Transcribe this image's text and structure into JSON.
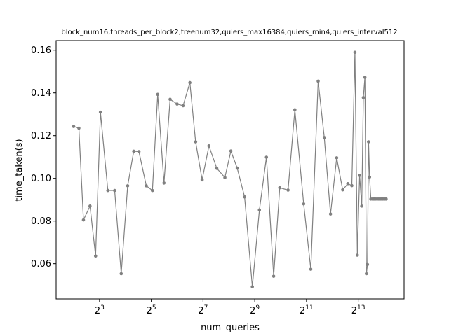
{
  "chart_data": {
    "type": "line",
    "title": "block_num16,threads_per_block2,treenum32,quiers_max16384,quiers_min4,quiers_interval512",
    "xlabel": "num_queries",
    "ylabel": "time_taken(s)",
    "xscale": "log2",
    "grid": false,
    "xlim": [
      2.5,
      28000
    ],
    "ylim": [
      0.0435,
      0.1645
    ],
    "x_ticks": [
      {
        "value": 8,
        "base": "2",
        "exp": "3"
      },
      {
        "value": 32,
        "base": "2",
        "exp": "5"
      },
      {
        "value": 128,
        "base": "2",
        "exp": "7"
      },
      {
        "value": 512,
        "base": "2",
        "exp": "9"
      },
      {
        "value": 2048,
        "base": "2",
        "exp": "11"
      },
      {
        "value": 8192,
        "base": "2",
        "exp": "13"
      }
    ],
    "y_ticks": [
      {
        "value": 0.06,
        "label": "0.06"
      },
      {
        "value": 0.08,
        "label": "0.08"
      },
      {
        "value": 0.1,
        "label": "0.10"
      },
      {
        "value": 0.12,
        "label": "0.12"
      },
      {
        "value": 0.14,
        "label": "0.14"
      },
      {
        "value": 0.16,
        "label": "0.16"
      }
    ],
    "series": [
      {
        "color": "#808080",
        "x": [
          4,
          4.6,
          5.2,
          6.2,
          7.2,
          8.2,
          10,
          12,
          14.3,
          17,
          20,
          23,
          28,
          33,
          38,
          45,
          53,
          64,
          75,
          90,
          105,
          125,
          150,
          185,
          230,
          270,
          320,
          390,
          480,
          580,
          700,
          850,
          1000,
          1250,
          1500,
          1900,
          2300,
          2800,
          3300,
          3900,
          4600,
          5400,
          6200,
          6900,
          7500,
          8000,
          8500,
          9000,
          9400,
          9800,
          10200,
          10500,
          10800,
          11100,
          11500,
          12000,
          12400,
          12700,
          13000,
          13500,
          14000,
          14500,
          15000,
          15400,
          15800,
          16300,
          16800,
          17300
        ],
        "y": [
          0.1243,
          0.1235,
          0.0805,
          0.087,
          0.0636,
          0.131,
          0.0943,
          0.0943,
          0.0553,
          0.0965,
          0.1127,
          0.1125,
          0.0965,
          0.0943,
          0.1393,
          0.0978,
          0.137,
          0.1348,
          0.134,
          0.1448,
          0.1171,
          0.0993,
          0.1152,
          0.1047,
          0.1004,
          0.1128,
          0.1048,
          0.0913,
          0.0492,
          0.0852,
          0.1099,
          0.0541,
          0.0956,
          0.0945,
          0.1321,
          0.088,
          0.0574,
          0.1455,
          0.1191,
          0.0833,
          0.1096,
          0.0946,
          0.0975,
          0.0966,
          0.159,
          0.064,
          0.1014,
          0.087,
          0.1378,
          0.1473,
          0.0553,
          0.0596,
          0.1171,
          0.1006,
          0.0903,
          0.0903,
          0.0903,
          0.0903,
          0.0903,
          0.0903,
          0.0903,
          0.0903,
          0.0903,
          0.0903,
          0.0903,
          0.0903,
          0.0903,
          0.0903
        ]
      }
    ]
  }
}
